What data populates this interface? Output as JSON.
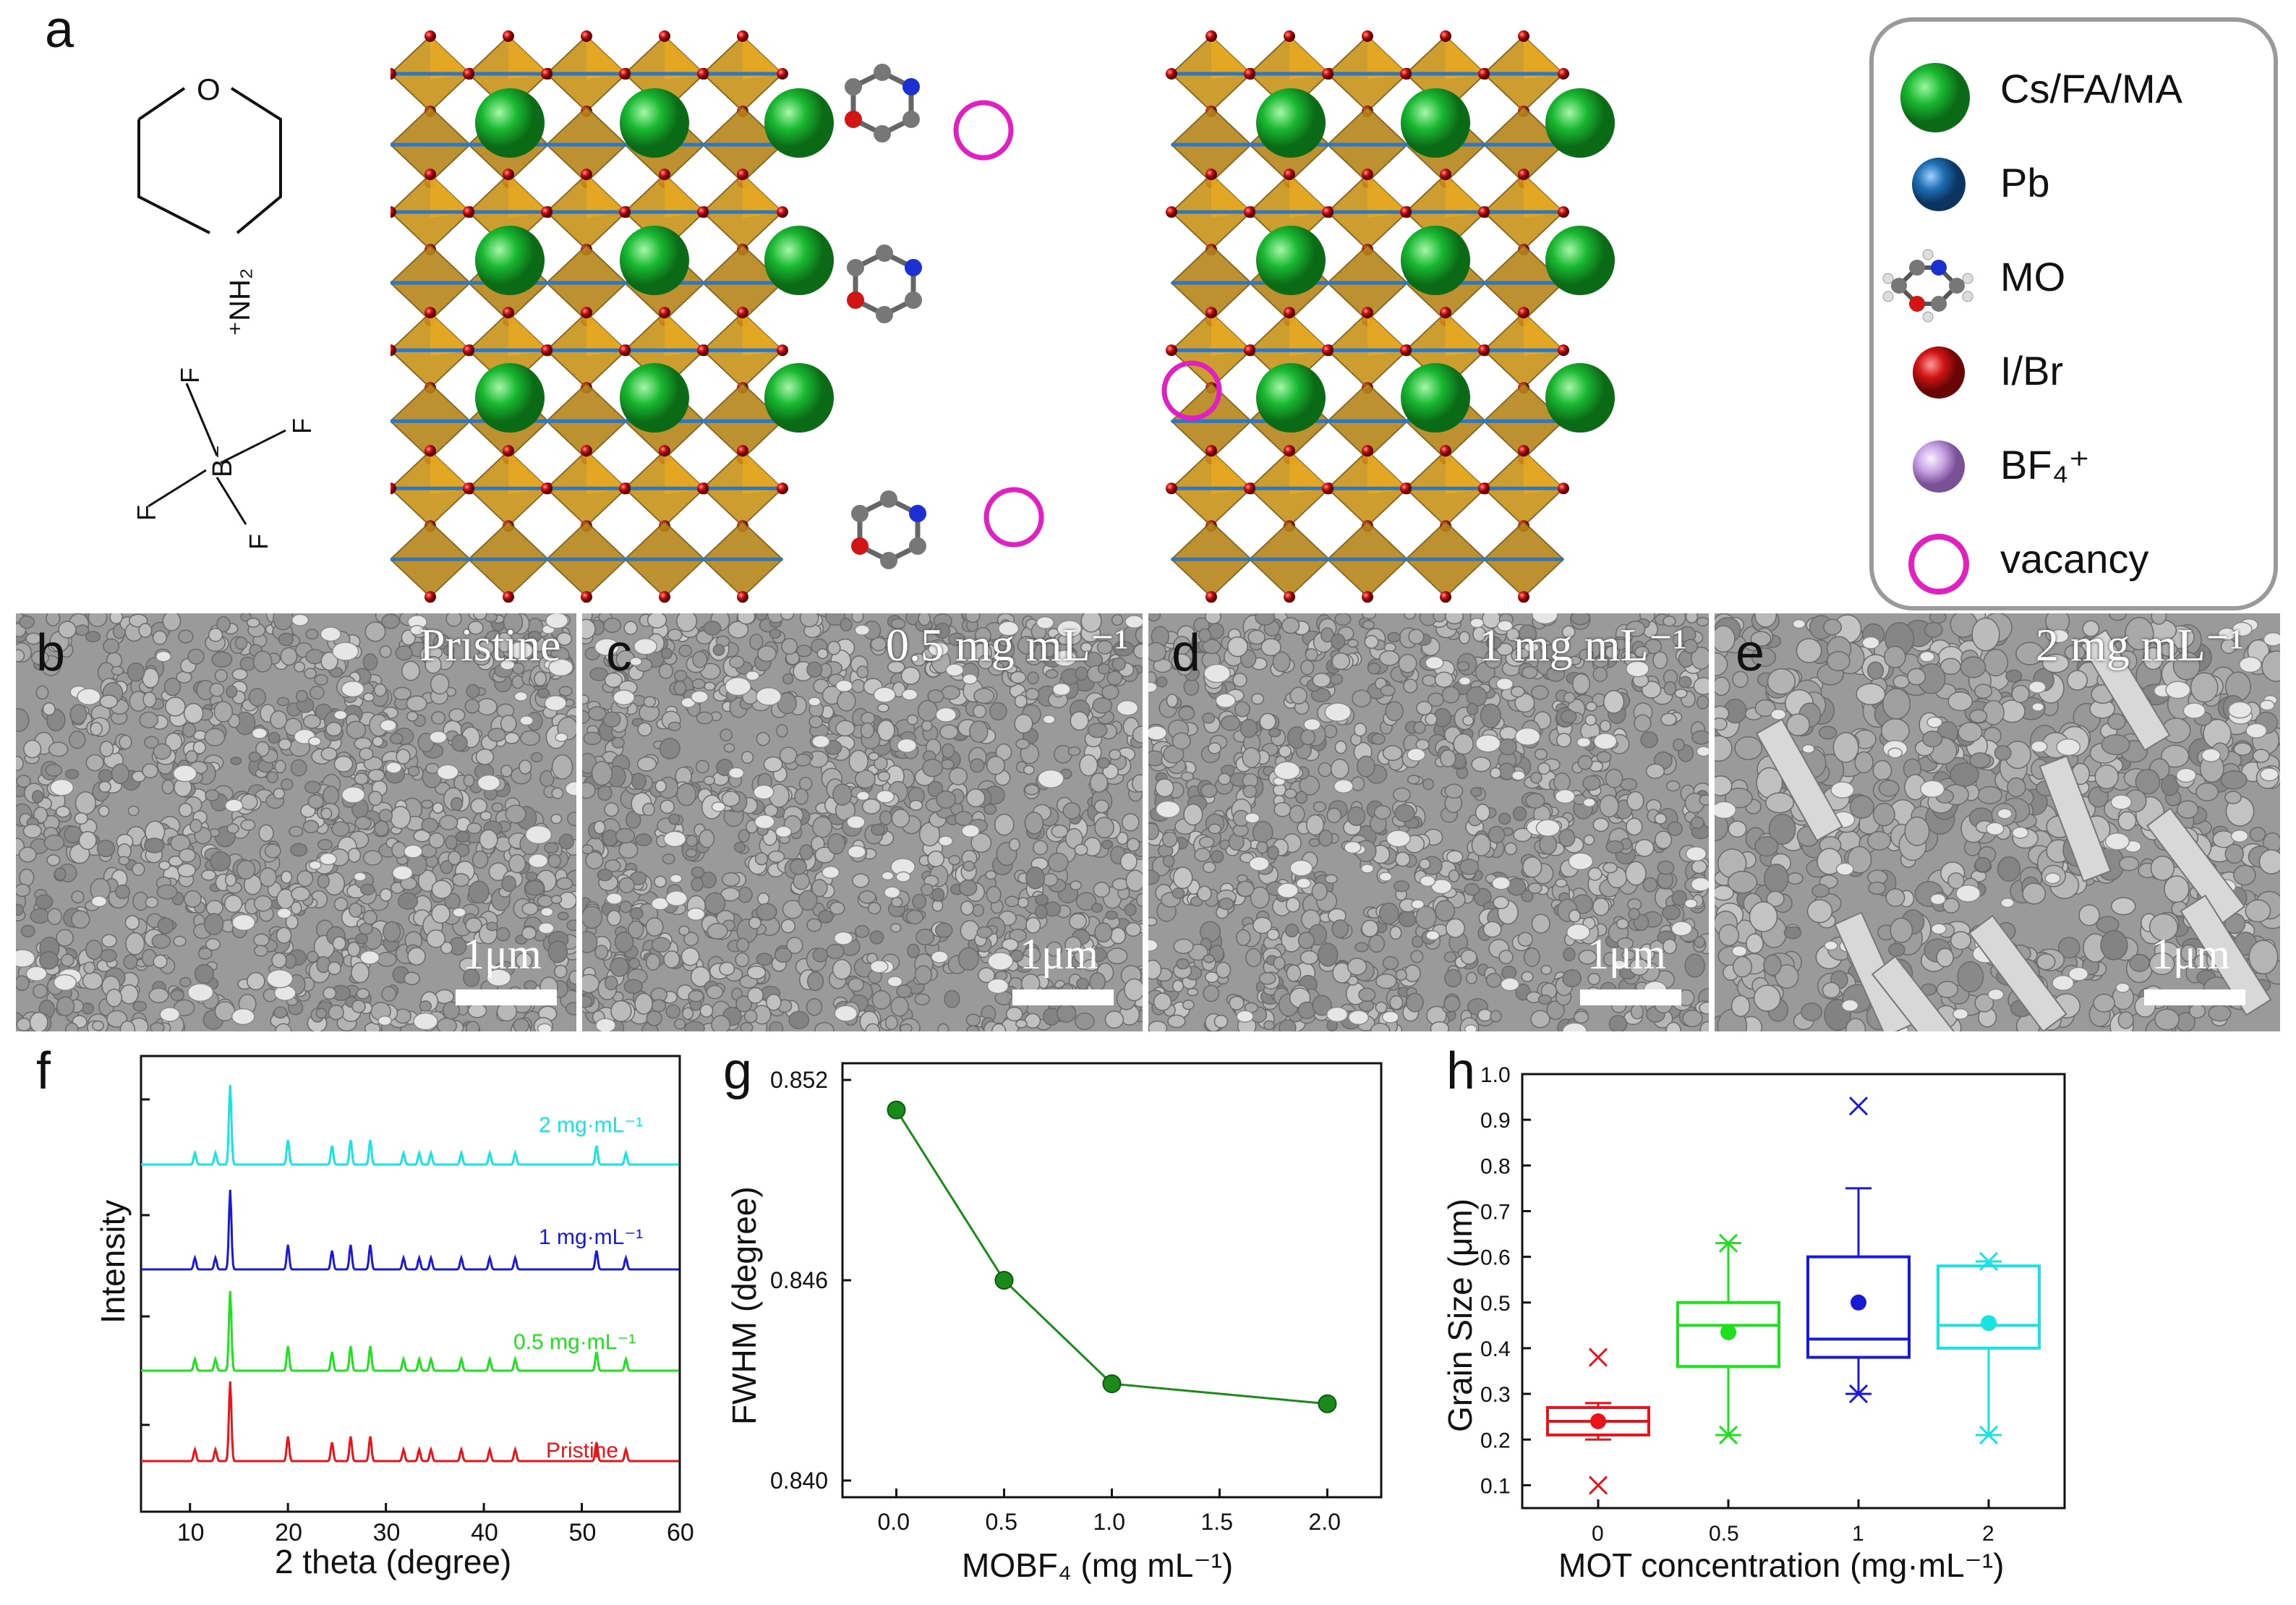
{
  "panels": {
    "a": "a",
    "b": "b",
    "c": "c",
    "d": "d",
    "e": "e",
    "f": "f",
    "g": "g",
    "h": "h"
  },
  "molecule": {
    "o_atom": "O",
    "nh2": "⁺NH₂",
    "f_atom": "F",
    "b_atom": "B⁻"
  },
  "legend": {
    "items": [
      {
        "label": "Cs/FA/MA",
        "icon": "green-sphere-icon",
        "color": "#19b832"
      },
      {
        "label": "Pb",
        "icon": "blue-sphere-icon",
        "color": "#1f6fb5"
      },
      {
        "label": "MO",
        "icon": "morpholine-molecule-icon",
        "color": "#7a7a7a"
      },
      {
        "label": "I/Br",
        "icon": "red-sphere-icon",
        "color": "#d11414"
      },
      {
        "label": "BF₄⁺",
        "icon": "lilac-sphere-icon",
        "color": "#c9a5e6"
      },
      {
        "label": "vacancy",
        "icon": "magenta-ring-icon",
        "color": "#e020c0"
      }
    ]
  },
  "sem": [
    {
      "label": "Pristine",
      "scale": "1μm"
    },
    {
      "label": "0.5 mg mL⁻¹",
      "scale": "1μm"
    },
    {
      "label": "1 mg mL⁻¹",
      "scale": "1μm"
    },
    {
      "label": "2 mg mL⁻¹",
      "scale": "1μm"
    }
  ],
  "chart_data": [
    {
      "type": "line",
      "panel": "f",
      "xlabel": "2 theta (degree)",
      "ylabel": "Intensity",
      "xlim": [
        5,
        60
      ],
      "xticks": [
        10,
        20,
        30,
        40,
        50,
        60
      ],
      "peaks": [
        10.5,
        12.6,
        14.1,
        20.0,
        24.5,
        26.4,
        28.4,
        31.8,
        33.4,
        34.6,
        37.7,
        40.6,
        43.2,
        51.5,
        54.5
      ],
      "series": [
        {
          "name": "Pristine",
          "color": "#e8141a"
        },
        {
          "name": "0.5 mg·mL⁻¹",
          "color": "#1fe01f"
        },
        {
          "name": "1 mg·mL⁻¹",
          "color": "#1a1ad6"
        },
        {
          "name": "2 mg·mL⁻¹",
          "color": "#19e2e2"
        }
      ]
    },
    {
      "type": "line",
      "panel": "g",
      "xlabel": "MOBF₄ (mg mL⁻¹)",
      "ylabel": "FWHM (degree)",
      "xlim": [
        -0.25,
        2.25
      ],
      "ylim": [
        0.8395,
        0.8525
      ],
      "xticks": [
        "0.0",
        "0.5",
        "1.0",
        "1.5",
        "2.0"
      ],
      "yticks": [
        "0.840",
        "0.846",
        "0.852"
      ],
      "x": [
        0.0,
        0.5,
        1.0,
        2.0
      ],
      "y": [
        0.8511,
        0.846,
        0.8429,
        0.8423
      ],
      "color": "#1a8a1a"
    },
    {
      "type": "box",
      "panel": "h",
      "xlabel": "MOT concentration (mg·mL⁻¹)",
      "ylabel": "Grain Size (μm)",
      "ylim": [
        0.05,
        1.0
      ],
      "yticks": [
        "0.1",
        "0.2",
        "0.3",
        "0.4",
        "0.5",
        "0.6",
        "0.7",
        "0.8",
        "0.9",
        "1.0"
      ],
      "categories": [
        "0",
        "0.5",
        "1",
        "2"
      ],
      "boxes": [
        {
          "cat": "0",
          "color": "#e8141a",
          "q1": 0.21,
          "median": 0.24,
          "q3": 0.27,
          "whisker_low": 0.2,
          "whisker_high": 0.28,
          "mean": 0.24,
          "min_mark": 0.1,
          "max_mark": 0.38
        },
        {
          "cat": "0.5",
          "color": "#1fe01f",
          "q1": 0.36,
          "median": 0.45,
          "q3": 0.5,
          "whisker_low": 0.21,
          "whisker_high": 0.63,
          "mean": 0.435,
          "min_mark": 0.21,
          "max_mark": 0.63
        },
        {
          "cat": "1",
          "color": "#1a1ad6",
          "q1": 0.38,
          "median": 0.42,
          "q3": 0.6,
          "whisker_low": 0.3,
          "whisker_high": 0.75,
          "mean": 0.5,
          "min_mark": 0.3,
          "max_mark": 0.93
        },
        {
          "cat": "2",
          "color": "#19e2e2",
          "q1": 0.4,
          "median": 0.45,
          "q3": 0.58,
          "whisker_low": 0.21,
          "whisker_high": 0.59,
          "mean": 0.455,
          "min_mark": 0.21,
          "max_mark": 0.59
        }
      ]
    }
  ]
}
